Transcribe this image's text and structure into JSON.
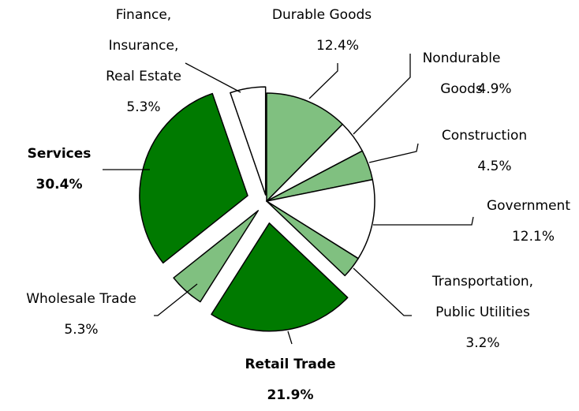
{
  "chart_data": {
    "type": "pie",
    "categories": [
      "Durable Goods",
      "Nondurable Goods",
      "Construction",
      "Government",
      "Transportation,\nPublic Utilities",
      "Retail Trade",
      "Wholesale Trade",
      "Services",
      "Finance,\nInsurance,\nReal Estate"
    ],
    "values": [
      12.4,
      4.9,
      4.5,
      12.1,
      3.2,
      21.9,
      5.3,
      30.4,
      5.3
    ],
    "value_labels": [
      "12.4%",
      "4.9%",
      "4.5%",
      "12.1%",
      "3.2%",
      "21.9%",
      "5.3%",
      "30.4%",
      "5.3%"
    ],
    "colors": [
      "#80c080",
      "#ffffff",
      "#80c080",
      "#ffffff",
      "#80c080",
      "#007a00",
      "#80c080",
      "#007a00",
      "#ffffff"
    ],
    "label_bold": [
      false,
      false,
      false,
      false,
      false,
      true,
      false,
      true,
      false
    ]
  }
}
